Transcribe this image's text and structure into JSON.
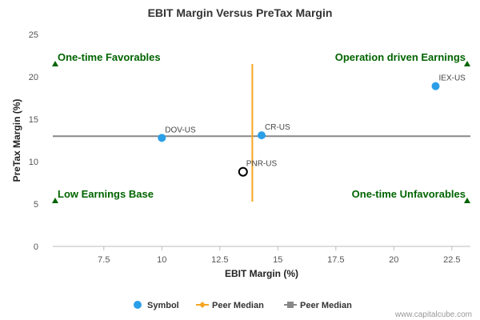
{
  "chart_data": {
    "type": "scatter",
    "title": "EBIT Margin Versus PreTax Margin",
    "xlabel": "EBIT Margin (%)",
    "ylabel": "PreTax Margin (%)",
    "xlim": [
      5.3,
      23.3
    ],
    "ylim": [
      0,
      25
    ],
    "xticks": [
      7.5,
      10,
      12.5,
      15,
      17.5,
      20,
      22.5
    ],
    "xtick_labels": [
      "7.5",
      "10",
      "12.5",
      "15",
      "17.5",
      "20",
      "22.5"
    ],
    "yticks": [
      0,
      5,
      10,
      15,
      20,
      25
    ],
    "ytick_labels": [
      "0",
      "5",
      "10",
      "15",
      "20",
      "25"
    ],
    "grid": false,
    "points": [
      {
        "label": "DOV-US",
        "x": 10.0,
        "y": 12.8,
        "highlight": false
      },
      {
        "label": "CR-US",
        "x": 14.3,
        "y": 13.1,
        "highlight": false
      },
      {
        "label": "IEX-US",
        "x": 21.8,
        "y": 18.9,
        "highlight": false
      },
      {
        "label": "PNR-US",
        "x": 13.5,
        "y": 8.8,
        "highlight": true
      }
    ],
    "peer_median_x": 13.9,
    "peer_median_y": 13.0,
    "quadrants": [
      {
        "label": "One-time Favorables",
        "position": "top-left"
      },
      {
        "label": "Operation driven Earnings",
        "position": "top-right"
      },
      {
        "label": "Low Earnings Base",
        "position": "bottom-left"
      },
      {
        "label": "One-time Unfavorables",
        "position": "bottom-right"
      }
    ],
    "legend": [
      {
        "label": "Symbol",
        "marker": "circle"
      },
      {
        "label": "Peer Median",
        "marker": "diamond-line"
      },
      {
        "label": "Peer Median",
        "marker": "square-line"
      }
    ],
    "legend_position": "bottom-center",
    "credit": "www.capitalcube.com"
  },
  "colors": {
    "point": "#2a9fe8",
    "highlight_fill": "#ffffff",
    "highlight_stroke": "#000000",
    "median_x": "#f5a623",
    "median_y": "#888888",
    "quadrant_text": "#006400",
    "axis": "#bbbbbb"
  }
}
